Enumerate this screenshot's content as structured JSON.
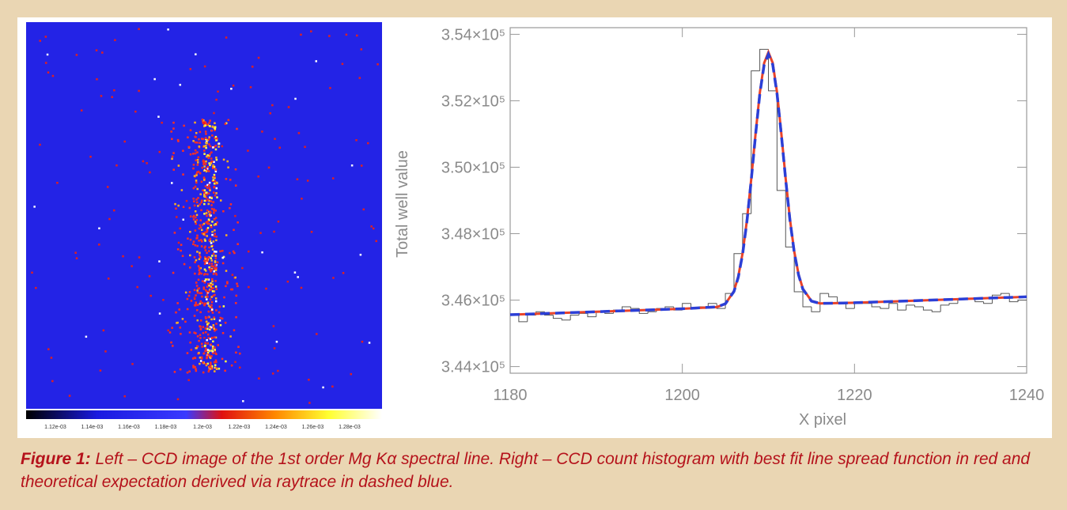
{
  "image_panel": {
    "colorbar": {
      "labels": [
        "1.12e-03",
        "1.14e-03",
        "1.16e-03",
        "1.18e-03",
        "1.2e-03",
        "1.22e-03",
        "1.24e-03",
        "1.26e-03",
        "1.28e-03"
      ]
    }
  },
  "chart_data": {
    "type": "histogram",
    "x_label": "X pixel",
    "y_label": "Total well value",
    "bins": [
      1180,
      1181,
      1182,
      1183,
      1184,
      1185,
      1186,
      1187,
      1188,
      1189,
      1190,
      1191,
      1192,
      1193,
      1194,
      1195,
      1196,
      1197,
      1198,
      1199,
      1200,
      1201,
      1202,
      1203,
      1204,
      1205,
      1206,
      1207,
      1208,
      1209,
      1210,
      1211,
      1212,
      1213,
      1214,
      1215,
      1216,
      1217,
      1218,
      1219,
      1220,
      1221,
      1222,
      1223,
      1224,
      1225,
      1226,
      1227,
      1228,
      1229,
      1230,
      1231,
      1232,
      1233,
      1234,
      1235,
      1236,
      1237,
      1238,
      1239,
      1240
    ],
    "values": [
      345550,
      345350,
      345550,
      345650,
      345550,
      345450,
      345400,
      345550,
      345600,
      345500,
      345650,
      345600,
      345700,
      345800,
      345750,
      345600,
      345650,
      345750,
      345800,
      345700,
      345900,
      345750,
      345800,
      345900,
      345750,
      346200,
      347400,
      348600,
      352900,
      353550,
      352300,
      349300,
      347600,
      346250,
      345800,
      345650,
      346200,
      346100,
      345900,
      345750,
      345900,
      345900,
      345800,
      345750,
      345900,
      345700,
      345850,
      345800,
      345700,
      345650,
      345850,
      345900,
      346050,
      346050,
      345950,
      345900,
      346150,
      346200,
      345950,
      346000
    ],
    "color": "#555555",
    "fits": [
      {
        "color": "#e8432a",
        "dashed": false,
        "x": [
          1180,
          1190,
          1200,
          1204,
          1205,
          1206,
          1206.5,
          1207,
          1207.5,
          1208,
          1208.5,
          1209,
          1209.5,
          1210,
          1210.5,
          1211,
          1211.5,
          1212,
          1212.5,
          1213,
          1213.5,
          1214,
          1215,
          1216,
          1220,
          1230,
          1240
        ],
        "values": [
          345560,
          345650,
          345740,
          345791,
          345886,
          346273,
          346715,
          347411,
          348395,
          349632,
          350988,
          352239,
          353132,
          353460,
          353141,
          352257,
          351015,
          349668,
          348440,
          347465,
          346778,
          346345,
          345976,
          345899,
          345920,
          346010,
          346100
        ]
      },
      {
        "color": "#2b3fd6",
        "dashed": true,
        "x": [
          1180,
          1190,
          1200,
          1204,
          1205,
          1206,
          1206.5,
          1207,
          1207.5,
          1208,
          1208.5,
          1209,
          1209.5,
          1210,
          1210.5,
          1211,
          1211.5,
          1212,
          1212.5,
          1213,
          1213.5,
          1214,
          1215,
          1216,
          1220,
          1230,
          1240
        ],
        "values": [
          345560,
          345650,
          345740,
          345795,
          345890,
          346260,
          346690,
          347380,
          348360,
          349600,
          350960,
          352200,
          353080,
          353400,
          353090,
          352210,
          350980,
          349640,
          348410,
          347440,
          346760,
          346330,
          345970,
          345900,
          345920,
          346010,
          346100
        ]
      }
    ],
    "xlim": [
      1180,
      1240
    ],
    "ylim": [
      343800,
      354200
    ],
    "xticks": [
      1180,
      1200,
      1220,
      1240
    ],
    "yticks": [
      {
        "value": 344000,
        "label": "3.44×10⁵"
      },
      {
        "value": 346000,
        "label": "3.46×10⁵"
      },
      {
        "value": 348000,
        "label": "3.48×10⁵"
      },
      {
        "value": 350000,
        "label": "3.50×10⁵"
      },
      {
        "value": 352000,
        "label": "3.52×10⁵"
      },
      {
        "value": 354000,
        "label": "3.54×10⁵"
      }
    ]
  },
  "caption": {
    "label": "Figure 1:",
    "text": "Left – CCD image of the 1st order Mg Kα spectral line. Right – CCD count histogram with best fit line spread function in red and theoretical expectation derived via raytrace in dashed blue."
  }
}
